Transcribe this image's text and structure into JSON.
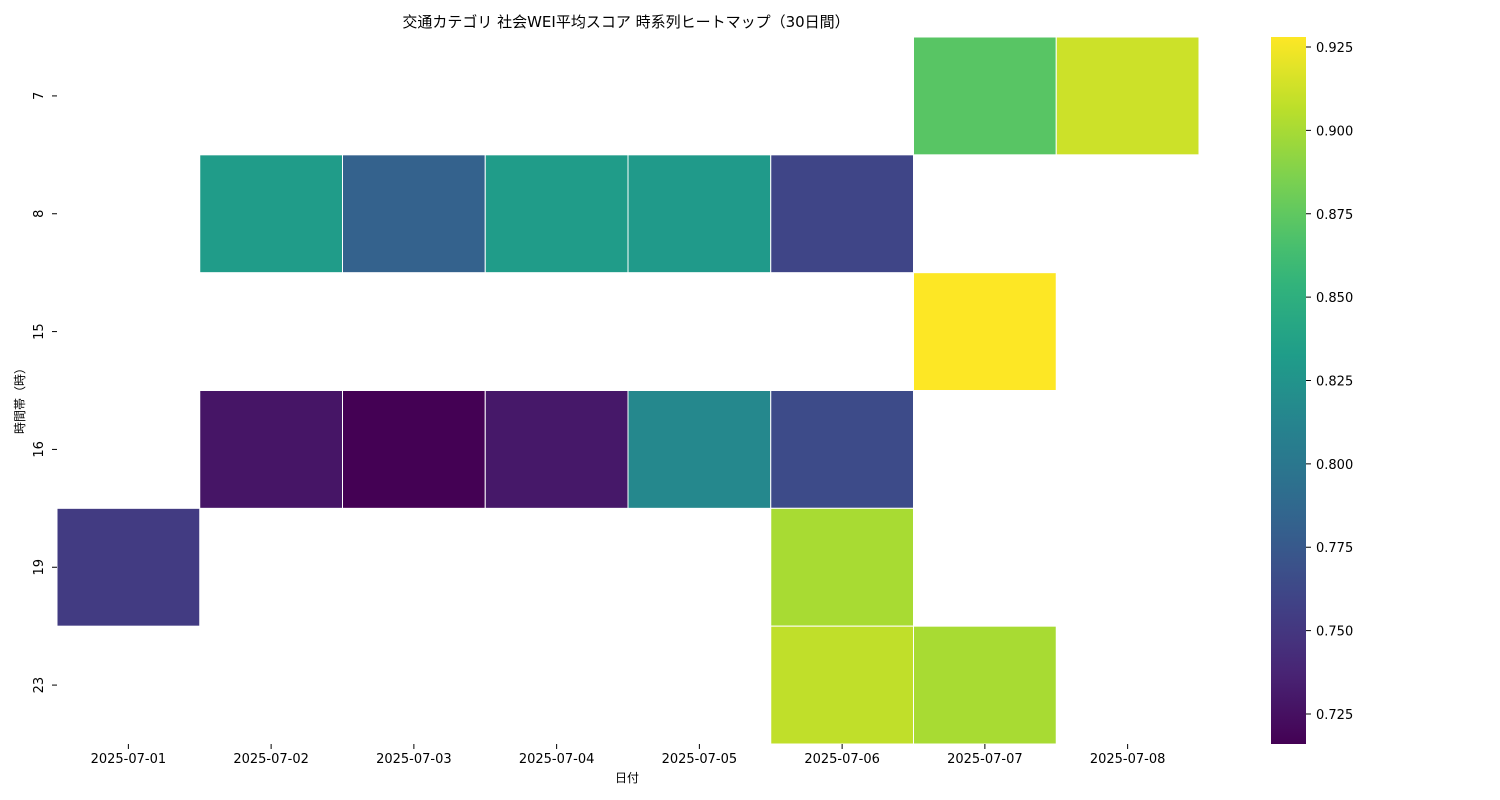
{
  "chart_data": {
    "type": "heatmap",
    "title": "交通カテゴリ 社会WEI平均スコア 時系列ヒートマップ（30日間）",
    "xlabel": "日付",
    "ylabel": "時間帯（時）",
    "x": [
      "2025-07-01",
      "2025-07-02",
      "2025-07-03",
      "2025-07-04",
      "2025-07-05",
      "2025-07-06",
      "2025-07-07",
      "2025-07-08"
    ],
    "y": [
      "7",
      "8",
      "15",
      "16",
      "19",
      "23"
    ],
    "values": [
      [
        null,
        null,
        null,
        null,
        null,
        null,
        0.872,
        0.912
      ],
      [
        null,
        0.832,
        0.782,
        0.832,
        0.83,
        0.76,
        null,
        null
      ],
      [
        null,
        null,
        null,
        null,
        null,
        null,
        0.928,
        null
      ],
      [
        null,
        0.728,
        0.716,
        0.73,
        0.815,
        0.765,
        null,
        null
      ],
      [
        0.753,
        null,
        null,
        null,
        null,
        0.9,
        null,
        null
      ],
      [
        null,
        null,
        null,
        null,
        null,
        0.908,
        0.9,
        null
      ]
    ],
    "colorbar": {
      "colormap": "viridis",
      "vmin": 0.716,
      "vmax": 0.928,
      "ticks": [
        "0.725",
        "0.750",
        "0.775",
        "0.800",
        "0.825",
        "0.850",
        "0.875",
        "0.900",
        "0.925"
      ]
    },
    "grid": false
  }
}
